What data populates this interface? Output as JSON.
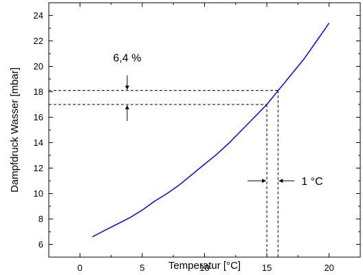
{
  "chart_data": {
    "type": "line",
    "xlabel": "Temperatur [°C]",
    "ylabel": "Dampfdruck Wasser [mbar]",
    "xlim": [
      -2.5,
      22.5
    ],
    "ylim": [
      5,
      25
    ],
    "xticks": [
      0,
      5,
      10,
      15,
      20
    ],
    "yticks": [
      6,
      8,
      10,
      12,
      14,
      16,
      18,
      20,
      22,
      24
    ],
    "grid": false,
    "line_color": "#1111cc",
    "series": [
      {
        "x": [
          1,
          2,
          3,
          4,
          5,
          6,
          7,
          8,
          9,
          10,
          11,
          12,
          13,
          14,
          15,
          16,
          17,
          18,
          19,
          20
        ],
        "values": [
          6.6,
          7.1,
          7.6,
          8.1,
          8.7,
          9.4,
          10.0,
          10.7,
          11.5,
          12.3,
          13.1,
          14.0,
          15.0,
          16.0,
          17.0,
          18.2,
          19.4,
          20.6,
          22.0,
          23.4
        ]
      }
    ],
    "annotations": {
      "percent_label": "6,4 %",
      "degree_label": "1 °C",
      "h_lines_y": [
        17.0,
        18.1
      ],
      "v_lines_x": [
        15.0,
        15.9
      ]
    }
  }
}
